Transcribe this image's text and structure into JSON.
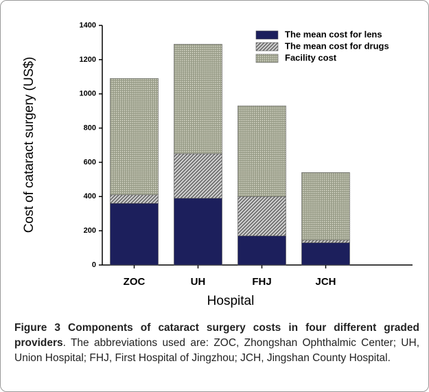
{
  "chart_data": {
    "type": "stacked-bar",
    "ylabel": "Cost of cataract surgery (US$)",
    "xlabel": "Hospital",
    "categories": [
      "ZOC",
      "UH",
      "FHJ",
      "JCH"
    ],
    "series": [
      {
        "name": "The mean cost for lens",
        "color": "#1c1f5c",
        "pattern": "solid",
        "values": [
          360,
          390,
          170,
          130
        ]
      },
      {
        "name": "The mean cost for drugs",
        "color": "#6e6e6e",
        "pattern": "hatch",
        "values": [
          50,
          260,
          230,
          15
        ]
      },
      {
        "name": "Facility cost",
        "color": "#a9ac98",
        "pattern": "dots",
        "values": [
          680,
          640,
          530,
          395
        ]
      }
    ],
    "ylim": [
      0,
      1400
    ],
    "yticks": [
      0,
      200,
      400,
      600,
      800,
      1000,
      1200,
      1400
    ],
    "legend": "top-right"
  },
  "caption": {
    "label": "Figure 3 Components of cataract surgery costs in four different graded providers",
    "text": ". The abbreviations used are: ZOC, Zhongshan Ophthalmic Center; UH, Union Hospital; FHJ, First Hospital of Jingzhou; JCH, Jingshan County Hospital."
  }
}
